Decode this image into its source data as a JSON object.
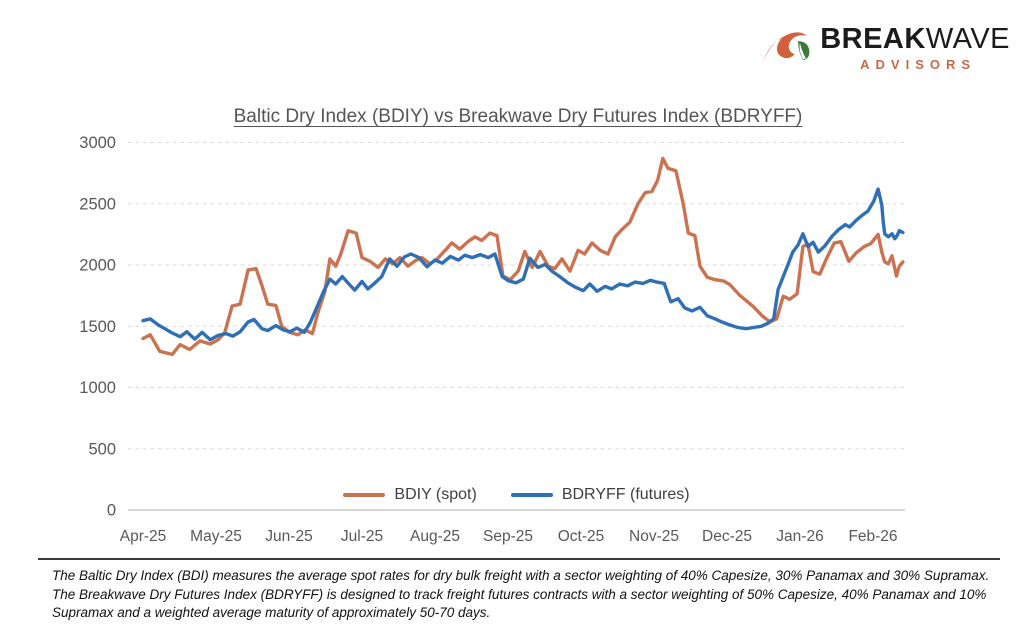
{
  "logo": {
    "brand_bold": "BREAK",
    "brand_light": "WAVE",
    "subtitle": "ADVISORS",
    "icon_orange": "#d2603a",
    "icon_green": "#3f7a3c"
  },
  "chart": {
    "title": "Baltic Dry Index (BDIY) vs Breakwave Dry Futures Index (BDRYFF)"
  },
  "legend": {
    "items": [
      {
        "label": "BDIY (spot)",
        "color": "#cb7350"
      },
      {
        "label": "BDRYFF (futures)",
        "color": "#2f6fb5"
      }
    ]
  },
  "footnote": {
    "lines": [
      "The Baltic Dry Index (BDI) measures the average spot rates for dry bulk freight with a sector weighting of 40% Capesize, 30% Panamax and 30% Supramax.",
      "The Breakwave Dry Futures Index (BDRYFF) is designed to track freight futures contracts with a sector weighting of 50% Capesize, 40% Panamax and 10%",
      "Supramax and a weighted average maturity of approximately 50-70 days."
    ]
  },
  "chart_data": {
    "type": "line",
    "title": "Baltic Dry Index (BDIY) vs Breakwave Dry Futures Index (BDRYFF)",
    "xlabel": "",
    "ylabel": "",
    "x_unit": "months since Apr-25 tick (0 = Apr-25, 10 = Feb-26)",
    "x_tick_labels": [
      "Apr-25",
      "May-25",
      "Jun-25",
      "Jul-25",
      "Aug-25",
      "Sep-25",
      "Oct-25",
      "Nov-25",
      "Dec-25",
      "Jan-26",
      "Feb-26"
    ],
    "y_ticks": [
      0,
      500,
      1000,
      1500,
      2000,
      2500,
      3000
    ],
    "ylim": [
      0,
      3000
    ],
    "grid": "horizontal dashed",
    "legend_position": "bottom-center",
    "series": [
      {
        "name": "BDIY (spot)",
        "color": "#cb7350",
        "points": [
          [
            0.0,
            1400
          ],
          [
            0.1,
            1430
          ],
          [
            0.23,
            1295
          ],
          [
            0.4,
            1270
          ],
          [
            0.51,
            1350
          ],
          [
            0.64,
            1310
          ],
          [
            0.78,
            1380
          ],
          [
            0.92,
            1355
          ],
          [
            1.03,
            1390
          ],
          [
            1.12,
            1450
          ],
          [
            1.22,
            1665
          ],
          [
            1.33,
            1680
          ],
          [
            1.44,
            1960
          ],
          [
            1.55,
            1970
          ],
          [
            1.63,
            1830
          ],
          [
            1.71,
            1680
          ],
          [
            1.82,
            1670
          ],
          [
            1.9,
            1500
          ],
          [
            2.01,
            1450
          ],
          [
            2.12,
            1430
          ],
          [
            2.22,
            1470
          ],
          [
            2.32,
            1440
          ],
          [
            2.4,
            1620
          ],
          [
            2.49,
            1780
          ],
          [
            2.56,
            2050
          ],
          [
            2.64,
            1990
          ],
          [
            2.71,
            2090
          ],
          [
            2.81,
            2280
          ],
          [
            2.92,
            2260
          ],
          [
            3.0,
            2060
          ],
          [
            3.11,
            2030
          ],
          [
            3.22,
            1980
          ],
          [
            3.32,
            2050
          ],
          [
            3.42,
            2010
          ],
          [
            3.52,
            2060
          ],
          [
            3.63,
            1990
          ],
          [
            3.73,
            2035
          ],
          [
            3.82,
            2060
          ],
          [
            3.93,
            2010
          ],
          [
            4.03,
            2050
          ],
          [
            4.14,
            2120
          ],
          [
            4.23,
            2180
          ],
          [
            4.34,
            2130
          ],
          [
            4.45,
            2190
          ],
          [
            4.55,
            2230
          ],
          [
            4.64,
            2200
          ],
          [
            4.75,
            2260
          ],
          [
            4.85,
            2240
          ],
          [
            4.93,
            1910
          ],
          [
            5.03,
            1880
          ],
          [
            5.14,
            1950
          ],
          [
            5.23,
            2110
          ],
          [
            5.33,
            1980
          ],
          [
            5.44,
            2110
          ],
          [
            5.55,
            1990
          ],
          [
            5.64,
            1970
          ],
          [
            5.74,
            2050
          ],
          [
            5.85,
            1950
          ],
          [
            5.96,
            2120
          ],
          [
            6.05,
            2090
          ],
          [
            6.15,
            2180
          ],
          [
            6.26,
            2120
          ],
          [
            6.37,
            2090
          ],
          [
            6.47,
            2230
          ],
          [
            6.56,
            2290
          ],
          [
            6.67,
            2350
          ],
          [
            6.78,
            2500
          ],
          [
            6.88,
            2590
          ],
          [
            6.97,
            2600
          ],
          [
            7.05,
            2690
          ],
          [
            7.12,
            2870
          ],
          [
            7.19,
            2790
          ],
          [
            7.3,
            2770
          ],
          [
            7.4,
            2500
          ],
          [
            7.47,
            2260
          ],
          [
            7.56,
            2240
          ],
          [
            7.63,
            1990
          ],
          [
            7.73,
            1900
          ],
          [
            7.84,
            1880
          ],
          [
            7.95,
            1870
          ],
          [
            8.04,
            1840
          ],
          [
            8.18,
            1750
          ],
          [
            8.36,
            1660
          ],
          [
            8.49,
            1580
          ],
          [
            8.59,
            1535
          ],
          [
            8.68,
            1560
          ],
          [
            8.77,
            1745
          ],
          [
            8.86,
            1720
          ],
          [
            8.96,
            1765
          ],
          [
            9.04,
            2150
          ],
          [
            9.11,
            2170
          ],
          [
            9.18,
            1945
          ],
          [
            9.27,
            1925
          ],
          [
            9.37,
            2060
          ],
          [
            9.47,
            2180
          ],
          [
            9.56,
            2190
          ],
          [
            9.67,
            2030
          ],
          [
            9.77,
            2100
          ],
          [
            9.88,
            2150
          ],
          [
            9.97,
            2175
          ],
          [
            10.07,
            2250
          ],
          [
            10.12,
            2105
          ],
          [
            10.16,
            2025
          ],
          [
            10.21,
            2010
          ],
          [
            10.26,
            2075
          ],
          [
            10.32,
            1910
          ],
          [
            10.36,
            1990
          ],
          [
            10.41,
            2025
          ]
        ]
      },
      {
        "name": "BDRYFF (futures)",
        "color": "#2f6fb5",
        "points": [
          [
            0.0,
            1545
          ],
          [
            0.1,
            1560
          ],
          [
            0.21,
            1510
          ],
          [
            0.3,
            1480
          ],
          [
            0.4,
            1445
          ],
          [
            0.51,
            1415
          ],
          [
            0.6,
            1455
          ],
          [
            0.71,
            1395
          ],
          [
            0.81,
            1450
          ],
          [
            0.92,
            1390
          ],
          [
            1.03,
            1425
          ],
          [
            1.14,
            1440
          ],
          [
            1.23,
            1420
          ],
          [
            1.33,
            1455
          ],
          [
            1.44,
            1535
          ],
          [
            1.52,
            1555
          ],
          [
            1.63,
            1480
          ],
          [
            1.71,
            1465
          ],
          [
            1.82,
            1505
          ],
          [
            1.92,
            1470
          ],
          [
            2.01,
            1455
          ],
          [
            2.11,
            1485
          ],
          [
            2.21,
            1450
          ],
          [
            2.29,
            1530
          ],
          [
            2.4,
            1680
          ],
          [
            2.48,
            1790
          ],
          [
            2.56,
            1885
          ],
          [
            2.64,
            1845
          ],
          [
            2.73,
            1905
          ],
          [
            2.82,
            1845
          ],
          [
            2.9,
            1795
          ],
          [
            3.0,
            1865
          ],
          [
            3.08,
            1805
          ],
          [
            3.18,
            1855
          ],
          [
            3.27,
            1905
          ],
          [
            3.38,
            2050
          ],
          [
            3.48,
            1990
          ],
          [
            3.58,
            2065
          ],
          [
            3.67,
            2090
          ],
          [
            3.78,
            2060
          ],
          [
            3.89,
            1985
          ],
          [
            4.0,
            2040
          ],
          [
            4.1,
            2015
          ],
          [
            4.21,
            2070
          ],
          [
            4.32,
            2040
          ],
          [
            4.41,
            2080
          ],
          [
            4.51,
            2060
          ],
          [
            4.62,
            2085
          ],
          [
            4.73,
            2060
          ],
          [
            4.82,
            2090
          ],
          [
            4.92,
            1905
          ],
          [
            5.01,
            1870
          ],
          [
            5.11,
            1855
          ],
          [
            5.21,
            1885
          ],
          [
            5.3,
            2055
          ],
          [
            5.41,
            1980
          ],
          [
            5.51,
            2005
          ],
          [
            5.6,
            1950
          ],
          [
            5.71,
            1905
          ],
          [
            5.82,
            1855
          ],
          [
            5.92,
            1820
          ],
          [
            6.03,
            1790
          ],
          [
            6.12,
            1845
          ],
          [
            6.22,
            1785
          ],
          [
            6.33,
            1825
          ],
          [
            6.42,
            1805
          ],
          [
            6.53,
            1845
          ],
          [
            6.64,
            1830
          ],
          [
            6.74,
            1860
          ],
          [
            6.85,
            1850
          ],
          [
            6.95,
            1875
          ],
          [
            7.04,
            1860
          ],
          [
            7.14,
            1850
          ],
          [
            7.23,
            1700
          ],
          [
            7.33,
            1725
          ],
          [
            7.42,
            1650
          ],
          [
            7.52,
            1625
          ],
          [
            7.63,
            1655
          ],
          [
            7.73,
            1585
          ],
          [
            7.84,
            1560
          ],
          [
            7.93,
            1535
          ],
          [
            8.04,
            1510
          ],
          [
            8.15,
            1490
          ],
          [
            8.26,
            1480
          ],
          [
            8.36,
            1490
          ],
          [
            8.47,
            1500
          ],
          [
            8.56,
            1525
          ],
          [
            8.64,
            1560
          ],
          [
            8.7,
            1800
          ],
          [
            8.77,
            1905
          ],
          [
            8.84,
            2010
          ],
          [
            8.9,
            2105
          ],
          [
            8.97,
            2160
          ],
          [
            9.04,
            2255
          ],
          [
            9.11,
            2150
          ],
          [
            9.18,
            2185
          ],
          [
            9.25,
            2105
          ],
          [
            9.34,
            2155
          ],
          [
            9.44,
            2235
          ],
          [
            9.53,
            2290
          ],
          [
            9.62,
            2330
          ],
          [
            9.68,
            2310
          ],
          [
            9.77,
            2365
          ],
          [
            9.85,
            2405
          ],
          [
            9.93,
            2440
          ],
          [
            10.01,
            2520
          ],
          [
            10.07,
            2620
          ],
          [
            10.12,
            2490
          ],
          [
            10.14,
            2355
          ],
          [
            10.16,
            2255
          ],
          [
            10.21,
            2230
          ],
          [
            10.26,
            2255
          ],
          [
            10.3,
            2215
          ],
          [
            10.33,
            2240
          ],
          [
            10.36,
            2280
          ],
          [
            10.41,
            2265
          ]
        ]
      }
    ],
    "axis_colors": {
      "tick_text": "#595959",
      "gridline": "#d9d9d9",
      "baseline": "#bfbfbf"
    }
  }
}
